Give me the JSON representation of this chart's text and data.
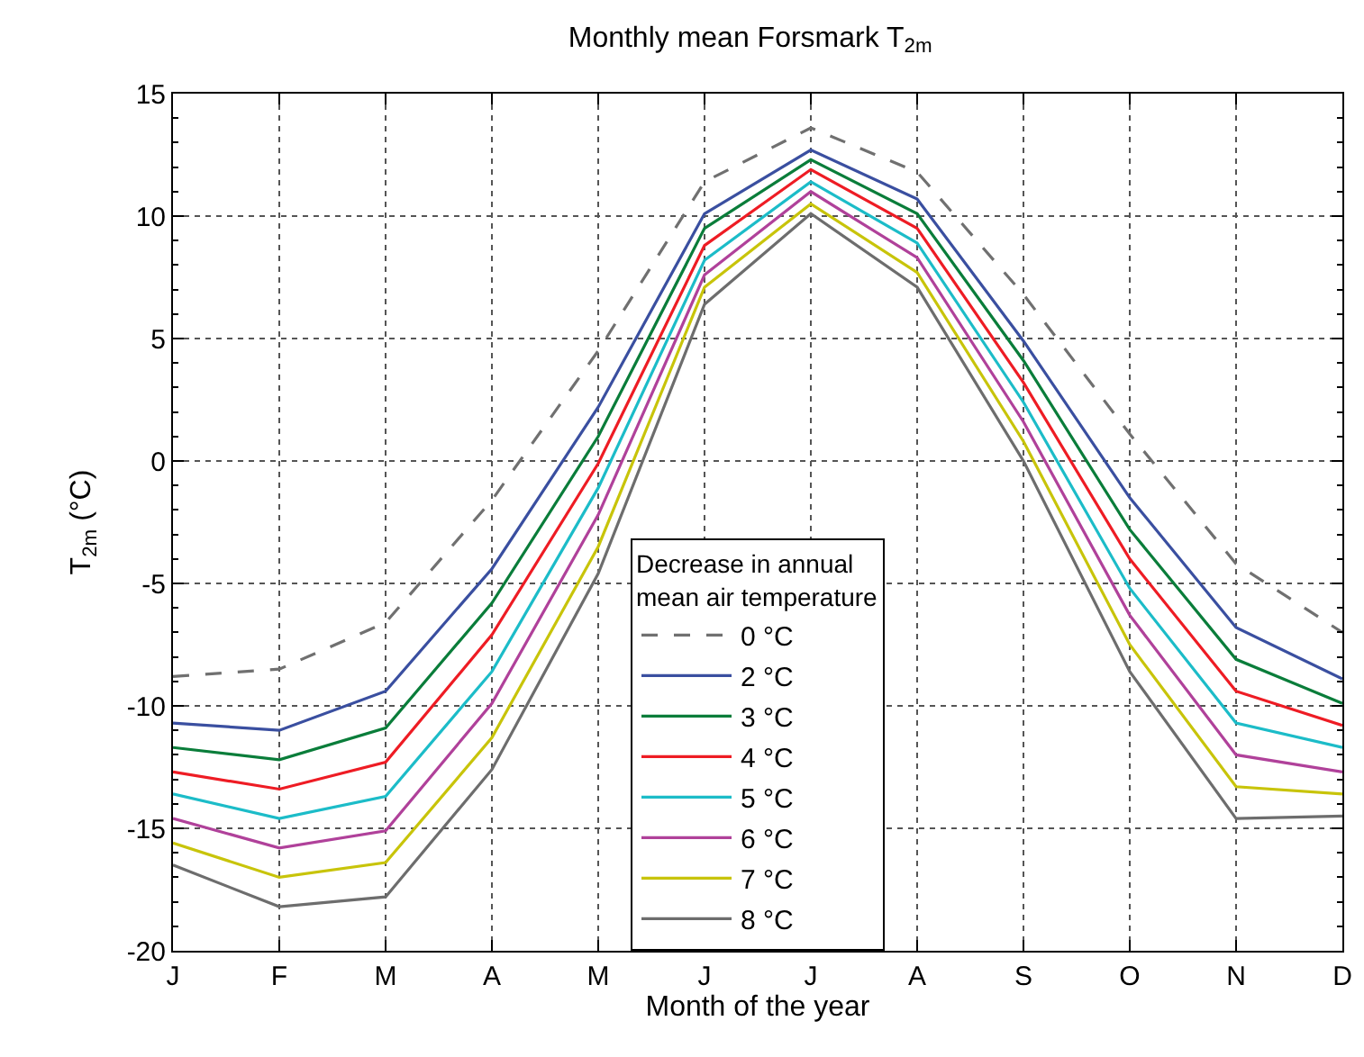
{
  "chart_data": {
    "type": "line",
    "title": "Monthly mean Forsmark T$_{2m}$",
    "xlabel": "Month of the year",
    "ylabel": "T$_{2m}$ (°C)",
    "legend_title": "Decrease in annual\nmean air temperature",
    "categories": [
      "J",
      "F",
      "M",
      "A",
      "M",
      "J",
      "J",
      "A",
      "S",
      "O",
      "N",
      "D"
    ],
    "ylim": [
      -20,
      15
    ],
    "yticks": [
      -20,
      -15,
      -10,
      -5,
      0,
      5,
      10,
      15
    ],
    "grid": true,
    "legend": "bottom",
    "line_style": "solid",
    "marker": "none",
    "series": [
      {
        "name": "0 °C",
        "color": "#707070",
        "line_style": "dashed",
        "values": [
          -8.8,
          -8.5,
          -6.6,
          -1.6,
          4.5,
          11.4,
          13.6,
          11.8,
          6.8,
          1.1,
          -4.2,
          -7.0
        ]
      },
      {
        "name": "2 °C",
        "color": "#3a4fa0",
        "values": [
          -10.7,
          -11.0,
          -9.4,
          -4.4,
          2.2,
          10.1,
          12.7,
          10.7,
          4.9,
          -1.5,
          -6.8,
          -8.9
        ]
      },
      {
        "name": "3 °C",
        "color": "#0a7d3a",
        "values": [
          -11.7,
          -12.2,
          -10.9,
          -5.8,
          1.0,
          9.5,
          12.3,
          10.1,
          4.1,
          -2.8,
          -8.1,
          -9.9
        ]
      },
      {
        "name": "4 °C",
        "color": "#ee1c24",
        "values": [
          -12.7,
          -13.4,
          -12.3,
          -7.1,
          -0.1,
          8.8,
          11.9,
          9.5,
          3.2,
          -4.0,
          -9.4,
          -10.8
        ]
      },
      {
        "name": "5 °C",
        "color": "#1cbcc8",
        "values": [
          -13.6,
          -14.6,
          -13.7,
          -8.6,
          -1.1,
          8.2,
          11.4,
          8.9,
          2.4,
          -5.2,
          -10.7,
          -11.7
        ]
      },
      {
        "name": "6 °C",
        "color": "#b0419a",
        "values": [
          -14.6,
          -15.8,
          -15.1,
          -9.9,
          -2.2,
          7.6,
          11.0,
          8.3,
          1.6,
          -6.3,
          -12.0,
          -12.7
        ]
      },
      {
        "name": "7 °C",
        "color": "#c8c40a",
        "values": [
          -15.6,
          -17.0,
          -16.4,
          -11.3,
          -3.5,
          7.1,
          10.5,
          7.7,
          0.8,
          -7.5,
          -13.3,
          -13.6
        ]
      },
      {
        "name": "8 °C",
        "color": "#6d6d6d",
        "values": [
          -16.5,
          -18.2,
          -17.8,
          -12.6,
          -4.6,
          6.4,
          10.1,
          7.1,
          0.0,
          -8.6,
          -14.6,
          -14.5
        ]
      }
    ]
  }
}
